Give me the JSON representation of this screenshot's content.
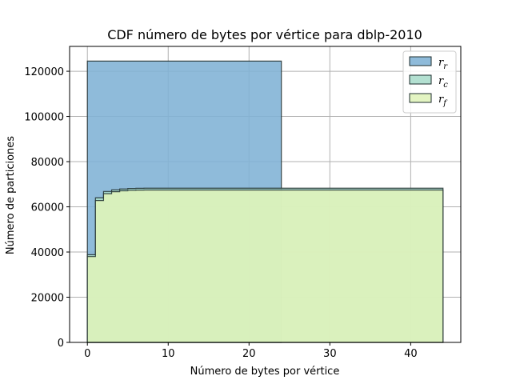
{
  "chart_data": {
    "type": "area",
    "title": "CDF número de bytes por vértice para dblp-2010",
    "xlabel": "Número de bytes por vértice",
    "ylabel": "Número de particiones",
    "xlim": [
      -2.2,
      46.2
    ],
    "ylim": [
      0,
      131000
    ],
    "xticks": [
      0,
      10,
      20,
      30,
      40
    ],
    "yticks": [
      0,
      20000,
      40000,
      60000,
      80000,
      100000,
      120000
    ],
    "grid": true,
    "legend_position": "top-right",
    "series": [
      {
        "name": "r",
        "subscript": "r",
        "color": "#7fb2d5",
        "steps": [
          {
            "x": 0,
            "y": 124500
          },
          {
            "x": 24,
            "y": 0
          }
        ]
      },
      {
        "name": "r",
        "subscript": "c",
        "color": "#a8dccb",
        "steps": [
          {
            "x": 0,
            "y": 38800
          },
          {
            "x": 1,
            "y": 64000
          },
          {
            "x": 2,
            "y": 66800
          },
          {
            "x": 3,
            "y": 67500
          },
          {
            "x": 4,
            "y": 67900
          },
          {
            "x": 5,
            "y": 68100
          },
          {
            "x": 6,
            "y": 68200
          },
          {
            "x": 7,
            "y": 68250
          },
          {
            "x": 44,
            "y": 0
          }
        ]
      },
      {
        "name": "r",
        "subscript": "f",
        "color": "#dff2b9",
        "steps": [
          {
            "x": 0,
            "y": 38000
          },
          {
            "x": 1,
            "y": 62800
          },
          {
            "x": 2,
            "y": 65800
          },
          {
            "x": 3,
            "y": 66700
          },
          {
            "x": 4,
            "y": 67100
          },
          {
            "x": 5,
            "y": 67300
          },
          {
            "x": 6,
            "y": 67400
          },
          {
            "x": 7,
            "y": 67450
          },
          {
            "x": 44,
            "y": 0
          }
        ]
      }
    ]
  }
}
